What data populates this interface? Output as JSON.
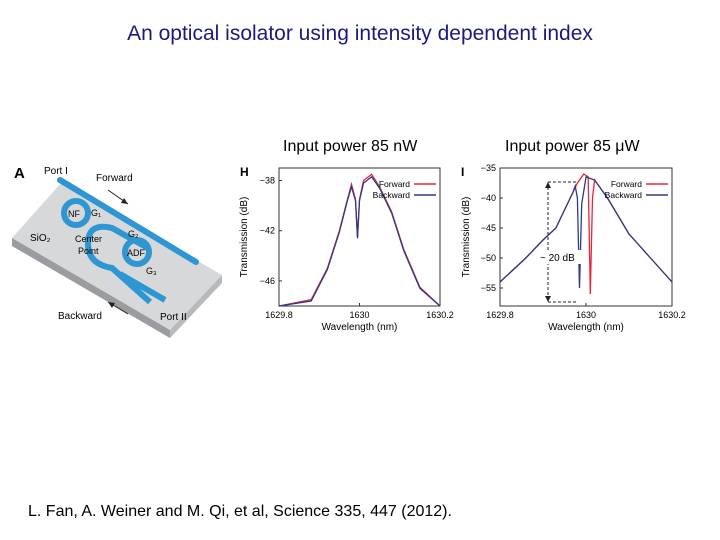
{
  "slide": {
    "title": "An optical isolator using intensity dependent index",
    "caption_left": "Input power 85 nW",
    "caption_right": "Input power 85 μW",
    "reference": "L. Fan, A. Weiner and M. Qi, et al, Science 335, 447 (2012)."
  },
  "schematic": {
    "panel_letter": "A",
    "port1": "Port I",
    "port2": "Port II",
    "forward": "Forward",
    "backward": "Backward",
    "substrate": "SiO₂",
    "nf": "NF",
    "adf": "ADF",
    "g1": "G₁",
    "g2": "G₂",
    "g3": "G₃",
    "center_point": "Center\nPoint"
  },
  "colors": {
    "title": "#1a1a80",
    "forward": "#e8253a",
    "backward": "#2b3c86",
    "waveguide": "#2e97d3"
  },
  "chart_data": [
    {
      "panel_letter": "H",
      "type": "line",
      "xlabel": "Wavelength (nm)",
      "ylabel": "Transmission (dB)",
      "xlim": [
        1629.8,
        1630.2
      ],
      "ylim": [
        -48,
        -37
      ],
      "xticks": [
        "1629.8",
        "1630",
        "1630.2"
      ],
      "yticks": [
        -38,
        -42,
        -46
      ],
      "legend": [
        "Forward",
        "Backward"
      ],
      "legend_position": "top-right",
      "series": [
        {
          "name": "Forward",
          "x": [
            1629.8,
            1629.88,
            1629.92,
            1629.95,
            1629.97,
            1629.98,
            1629.99,
            1629.995,
            1630.0,
            1630.01,
            1630.03,
            1630.05,
            1630.08,
            1630.11,
            1630.15,
            1630.2
          ],
          "y": [
            -48.5,
            -47.5,
            -45,
            -42,
            -39.5,
            -38.3,
            -39.5,
            -42.5,
            -39.5,
            -38,
            -37.5,
            -38.5,
            -40.5,
            -43.5,
            -46.5,
            -48.5
          ]
        },
        {
          "name": "Backward",
          "x": [
            1629.8,
            1629.88,
            1629.92,
            1629.95,
            1629.97,
            1629.98,
            1629.99,
            1629.995,
            1630.0,
            1630.01,
            1630.03,
            1630.05,
            1630.08,
            1630.11,
            1630.15,
            1630.2
          ],
          "y": [
            -48.5,
            -47.6,
            -45.1,
            -42.1,
            -39.6,
            -38.5,
            -39.6,
            -42.6,
            -39.6,
            -38.2,
            -37.7,
            -38.6,
            -40.6,
            -43.6,
            -46.6,
            -48.5
          ]
        }
      ]
    },
    {
      "panel_letter": "I",
      "type": "line",
      "xlabel": "Wavelength (nm)",
      "ylabel": "Transmission (dB)",
      "xlim": [
        1629.8,
        1630.2
      ],
      "ylim": [
        -58,
        -35
      ],
      "xticks": [
        "1629.8",
        "1630",
        "1630.2"
      ],
      "yticks": [
        -35,
        -40,
        -45,
        -50,
        -55
      ],
      "legend": [
        "Forward",
        "Backward"
      ],
      "legend_position": "top-right",
      "annotation": "~ 20 dB",
      "series": [
        {
          "name": "Forward",
          "x": [
            1629.8,
            1629.86,
            1629.9,
            1629.93,
            1629.95,
            1629.97,
            1629.98,
            1629.995,
            1630.005,
            1630.01,
            1630.015,
            1630.02,
            1630.05,
            1630.1,
            1630.15,
            1630.2
          ],
          "y": [
            -54,
            -50,
            -47,
            -45,
            -42,
            -39,
            -37.5,
            -36,
            -36.5,
            -56,
            -40,
            -37,
            -40,
            -46,
            -50,
            -54
          ]
        },
        {
          "name": "Backward",
          "x": [
            1629.8,
            1629.86,
            1629.9,
            1629.93,
            1629.95,
            1629.97,
            1629.975,
            1629.98,
            1629.985,
            1629.99,
            1630.0,
            1630.02,
            1630.05,
            1630.1,
            1630.15,
            1630.2
          ],
          "y": [
            -54,
            -50,
            -47,
            -45,
            -42,
            -39,
            -38,
            -40,
            -55,
            -41,
            -36.5,
            -37,
            -40,
            -46,
            -50,
            -54
          ]
        }
      ]
    }
  ]
}
